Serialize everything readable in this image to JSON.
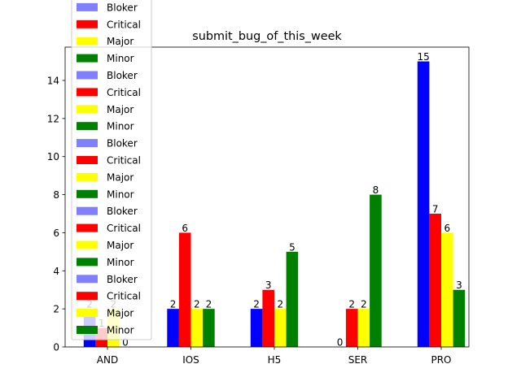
{
  "chart_data": {
    "type": "bar",
    "title": "submit_bug_of_this_week",
    "xlabel": "",
    "ylabel": "",
    "categories": [
      "AND",
      "IOS",
      "H5",
      "SER",
      "PRO"
    ],
    "ylim": [
      0,
      15.75
    ],
    "yticks": [
      0,
      2,
      4,
      6,
      8,
      10,
      12,
      14
    ],
    "grid": false,
    "legend_position": "upper-left",
    "series": [
      {
        "name": "Bloker",
        "color": "#0000ff",
        "values": [
          2,
          2,
          2,
          0,
          15
        ]
      },
      {
        "name": "Critical",
        "color": "#ff0000",
        "values": [
          1,
          6,
          3,
          2,
          7
        ]
      },
      {
        "name": "Major",
        "color": "#ffff00",
        "values": [
          2,
          2,
          2,
          2,
          6
        ]
      },
      {
        "name": "Minor",
        "color": "#008000",
        "values": [
          0,
          2,
          5,
          8,
          3
        ]
      }
    ],
    "legend_entries": [
      {
        "label": "Bloker",
        "color": "#8080ff"
      },
      {
        "label": "Critical",
        "color": "#ff0000"
      },
      {
        "label": "Major",
        "color": "#ffff00"
      },
      {
        "label": "Minor",
        "color": "#008000"
      },
      {
        "label": "Bloker",
        "color": "#8080ff"
      },
      {
        "label": "Critical",
        "color": "#ff0000"
      },
      {
        "label": "Major",
        "color": "#ffff00"
      },
      {
        "label": "Minor",
        "color": "#008000"
      },
      {
        "label": "Bloker",
        "color": "#8080ff"
      },
      {
        "label": "Critical",
        "color": "#ff0000"
      },
      {
        "label": "Major",
        "color": "#ffff00"
      },
      {
        "label": "Minor",
        "color": "#008000"
      },
      {
        "label": "Bloker",
        "color": "#8080ff"
      },
      {
        "label": "Critical",
        "color": "#ff0000"
      },
      {
        "label": "Major",
        "color": "#ffff00"
      },
      {
        "label": "Minor",
        "color": "#008000"
      },
      {
        "label": "Bloker",
        "color": "#8080ff"
      },
      {
        "label": "Critical",
        "color": "#ff0000"
      },
      {
        "label": "Major",
        "color": "#ffff00"
      },
      {
        "label": "Minor",
        "color": "#008000"
      }
    ]
  }
}
